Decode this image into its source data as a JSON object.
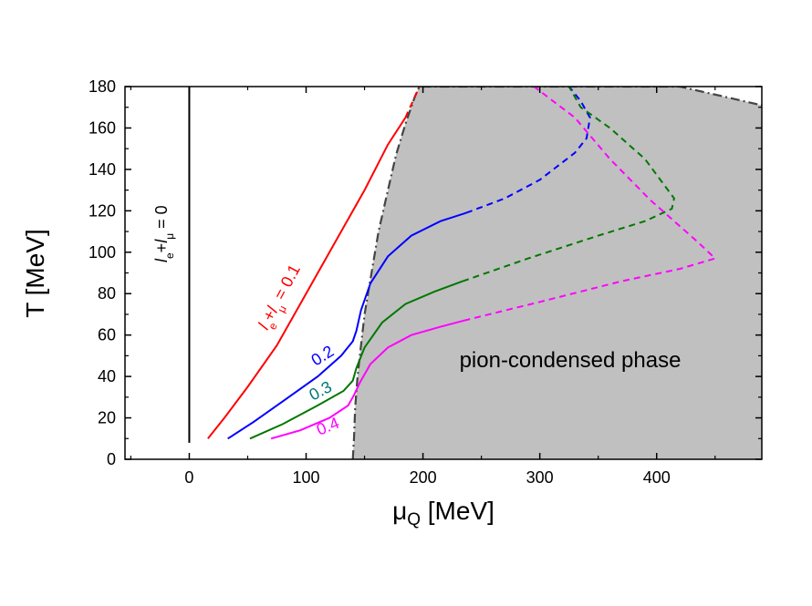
{
  "chart_data": {
    "type": "line",
    "xlabel": "μ",
    "xlabel_sub": "Q",
    "xlabel_unit": " [MeV]",
    "ylabel": "T [MeV]",
    "xlim": [
      -55,
      490
    ],
    "ylim": [
      0,
      180
    ],
    "x_ticks": [
      0,
      100,
      200,
      300,
      400
    ],
    "y_ticks": [
      0,
      20,
      40,
      60,
      80,
      100,
      120,
      140,
      160,
      180
    ],
    "region": {
      "name": "pion-condensed phase",
      "color": "#c0c0c0",
      "boundary": [
        [
          140,
          0
        ],
        [
          141,
          10
        ],
        [
          142,
          25
        ],
        [
          144,
          40
        ],
        [
          147,
          55
        ],
        [
          150,
          70
        ],
        [
          156,
          90
        ],
        [
          162,
          110
        ],
        [
          170,
          130
        ],
        [
          177,
          147
        ],
        [
          185,
          162
        ],
        [
          193,
          175
        ],
        [
          197,
          180
        ],
        [
          325,
          180
        ],
        [
          420,
          180
        ],
        [
          490,
          171
        ]
      ]
    },
    "zero_line": {
      "x": 0,
      "y_range": [
        8,
        180
      ],
      "label": "l_e + l_μ = 0"
    },
    "series": [
      {
        "name": "0.1",
        "label_text": "l_e + l_μ = 0.1",
        "color": "#ff0000",
        "solid": [
          [
            16,
            10
          ],
          [
            30,
            20
          ],
          [
            50,
            35
          ],
          [
            75,
            55
          ],
          [
            105,
            85
          ],
          [
            130,
            110
          ],
          [
            150,
            130
          ],
          [
            170,
            152
          ],
          [
            185,
            165
          ]
        ],
        "dashed": [
          [
            185,
            165
          ],
          [
            197,
            180
          ]
        ]
      },
      {
        "name": "0.2",
        "color": "#0000ff",
        "solid": [
          [
            33,
            10
          ],
          [
            55,
            18
          ],
          [
            80,
            28
          ],
          [
            110,
            40
          ],
          [
            130,
            50
          ],
          [
            140,
            57
          ],
          [
            143,
            62
          ],
          [
            147,
            72
          ],
          [
            155,
            85
          ],
          [
            170,
            98
          ],
          [
            190,
            108
          ],
          [
            215,
            115
          ],
          [
            237,
            119
          ]
        ],
        "dashed": [
          [
            237,
            119
          ],
          [
            270,
            126
          ],
          [
            300,
            135
          ],
          [
            330,
            148
          ],
          [
            340,
            155
          ],
          [
            343,
            165
          ],
          [
            335,
            173
          ],
          [
            325,
            180
          ]
        ]
      },
      {
        "name": "0.3",
        "color": "#007700",
        "solid": [
          [
            52,
            10
          ],
          [
            80,
            17
          ],
          [
            110,
            26
          ],
          [
            132,
            33
          ],
          [
            140,
            38
          ],
          [
            143,
            44
          ],
          [
            150,
            54
          ],
          [
            165,
            66
          ],
          [
            185,
            75
          ],
          [
            210,
            81
          ],
          [
            234,
            86
          ]
        ],
        "dashed": [
          [
            234,
            86
          ],
          [
            290,
            97
          ],
          [
            350,
            108
          ],
          [
            390,
            115
          ],
          [
            413,
            121
          ],
          [
            415,
            126
          ],
          [
            390,
            145
          ],
          [
            360,
            160
          ],
          [
            335,
            170
          ],
          [
            325,
            180
          ]
        ]
      },
      {
        "name": "0.4",
        "color": "#ff00ff",
        "solid": [
          [
            70,
            10
          ],
          [
            95,
            14
          ],
          [
            120,
            20
          ],
          [
            136,
            26
          ],
          [
            141,
            31
          ],
          [
            146,
            37
          ],
          [
            155,
            46
          ],
          [
            170,
            54
          ],
          [
            190,
            60
          ],
          [
            215,
            64
          ],
          [
            235,
            67
          ]
        ],
        "dashed": [
          [
            235,
            67
          ],
          [
            300,
            76
          ],
          [
            370,
            86
          ],
          [
            420,
            92
          ],
          [
            450,
            97
          ],
          [
            435,
            105
          ],
          [
            395,
            125
          ],
          [
            360,
            145
          ],
          [
            330,
            165
          ],
          [
            295,
            180
          ]
        ]
      }
    ],
    "annotations": [
      {
        "text": "0.2",
        "color": "#0000ff"
      },
      {
        "text": "0.3",
        "color": "#007777"
      },
      {
        "text": "0.4",
        "color": "#ff00ff"
      }
    ]
  }
}
